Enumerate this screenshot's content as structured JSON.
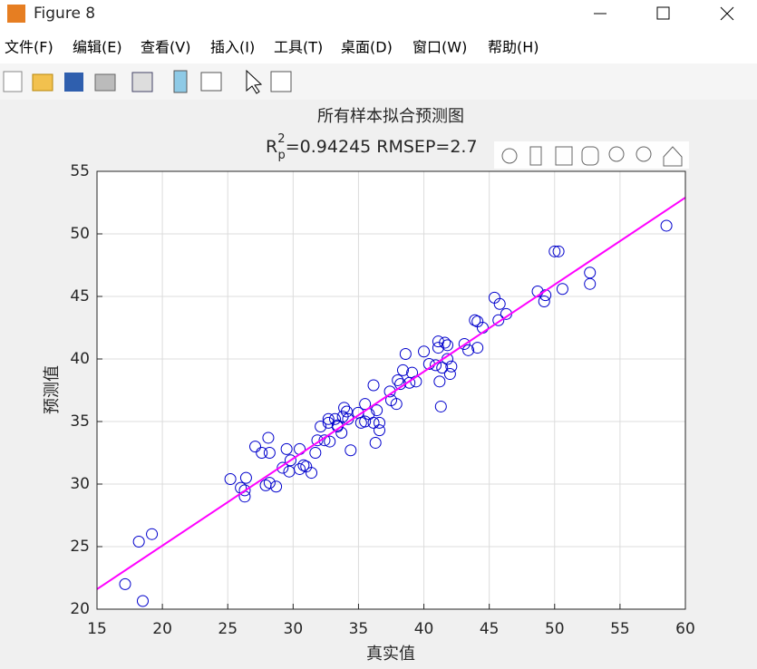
{
  "window": {
    "title": "Figure 8",
    "menu": [
      "文件(F)",
      "编辑(E)",
      "查看(V)",
      "插入(I)",
      "工具(T)",
      "桌面(D)",
      "窗口(W)",
      "帮助(H)"
    ]
  },
  "chart_data": {
    "type": "scatter",
    "title": "所有样本拟合预测图",
    "subtitle_parts": [
      "R",
      "2",
      "p",
      "=0.94245  RMSEP=2.7"
    ],
    "xlabel": "真实值",
    "ylabel": "预测值",
    "xlim": [
      15,
      60
    ],
    "ylim": [
      20,
      55
    ],
    "xticks": [
      15,
      20,
      25,
      30,
      35,
      40,
      45,
      50,
      55,
      60
    ],
    "yticks": [
      20,
      25,
      30,
      35,
      40,
      45,
      50,
      55
    ],
    "grid": true,
    "points": {
      "color": "#0000cc",
      "x": [
        17.15,
        18.2,
        18.5,
        19.2,
        25.2,
        26.0,
        26.3,
        26.4,
        26.3,
        27.1,
        27.6,
        28.1,
        28.2,
        27.9,
        28.2,
        28.7,
        29.2,
        29.5,
        29.7,
        29.8,
        30.5,
        30.5,
        30.8,
        31.0,
        31.4,
        31.7,
        31.85,
        32.1,
        32.4,
        32.7,
        32.7,
        32.8,
        33.2,
        33.4,
        33.4,
        33.8,
        33.7,
        33.9,
        34.2,
        34.1,
        34.4,
        34.97,
        35.2,
        35.5,
        35.5,
        35.8,
        36.15,
        36.15,
        36.3,
        36.4,
        36.6,
        36.6,
        37.4,
        37.5,
        37.9,
        38.0,
        38.2,
        38.4,
        38.6,
        38.9,
        39.1,
        39.4,
        40.0,
        40.4,
        40.9,
        41.1,
        41.1,
        41.2,
        41.3,
        41.4,
        41.6,
        41.8,
        41.8,
        42.0,
        42.1,
        43.1,
        43.4,
        43.9,
        44.1,
        44.1,
        44.5,
        45.4,
        45.8,
        45.7,
        46.3,
        48.7,
        49.2,
        49.3,
        50.0,
        50.3,
        50.6,
        52.7,
        52.7,
        58.55
      ],
      "y": [
        22.0,
        25.4,
        20.65,
        26.0,
        30.4,
        29.7,
        29.0,
        30.5,
        29.5,
        33.0,
        32.5,
        33.7,
        32.5,
        29.9,
        30.1,
        29.8,
        31.3,
        32.8,
        31.0,
        31.9,
        32.8,
        31.2,
        31.5,
        31.4,
        30.9,
        32.5,
        33.5,
        34.6,
        33.5,
        34.9,
        35.2,
        33.4,
        35.2,
        34.6,
        34.7,
        35.4,
        34.1,
        36.1,
        35.2,
        35.8,
        32.7,
        35.7,
        34.9,
        36.4,
        35.0,
        35.6,
        37.9,
        34.9,
        33.3,
        35.9,
        34.9,
        34.3,
        37.4,
        36.7,
        36.4,
        38.3,
        38.0,
        39.1,
        40.4,
        38.1,
        38.9,
        38.2,
        40.6,
        39.6,
        39.5,
        41.4,
        40.9,
        38.2,
        36.2,
        39.3,
        41.3,
        41.1,
        40.0,
        38.8,
        39.4,
        41.2,
        40.7,
        43.1,
        43.0,
        40.9,
        42.5,
        44.9,
        44.4,
        43.1,
        43.6,
        45.4,
        44.6,
        45.1,
        48.6,
        48.6,
        45.6,
        46.9,
        46.0,
        50.65
      ]
    },
    "fit_line": {
      "color": "#ff00ff",
      "x": [
        15,
        60
      ],
      "y": [
        21.6,
        52.9
      ]
    }
  }
}
